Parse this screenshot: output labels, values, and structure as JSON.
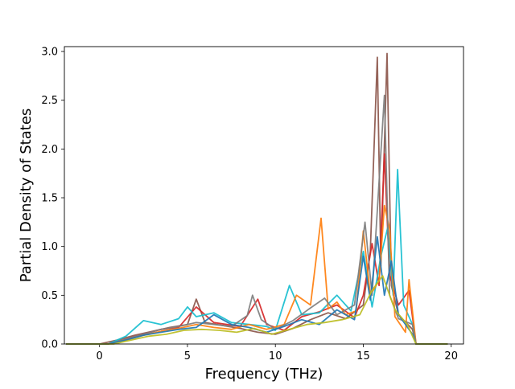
{
  "chart_data": {
    "type": "line",
    "title": "",
    "xlabel": "Frequency (THz)",
    "ylabel": "Partial Density of States",
    "xlim": [
      -2.0,
      20.7
    ],
    "ylim": [
      0.0,
      3.05
    ],
    "xticks": [
      0,
      5,
      10,
      15,
      20
    ],
    "yticks": [
      0.0,
      0.5,
      1.0,
      1.5,
      2.0,
      2.5,
      3.0
    ],
    "xtick_labels": [
      "0",
      "5",
      "10",
      "15",
      "20"
    ],
    "ytick_labels": [
      "0.0",
      "0.5",
      "1.0",
      "1.5",
      "2.0",
      "2.5",
      "3.0"
    ],
    "grid": false,
    "legend": "none",
    "series": [
      {
        "color": "#8c564b",
        "points": [
          [
            -1.9,
            0
          ],
          [
            0,
            0
          ],
          [
            1,
            0.04
          ],
          [
            2,
            0.09
          ],
          [
            3,
            0.13
          ],
          [
            4,
            0.17
          ],
          [
            5,
            0.2
          ],
          [
            5.5,
            0.46
          ],
          [
            6,
            0.22
          ],
          [
            7,
            0.19
          ],
          [
            8,
            0.16
          ],
          [
            9,
            0.12
          ],
          [
            10,
            0.1
          ],
          [
            11,
            0.16
          ],
          [
            12,
            0.25
          ],
          [
            13,
            0.32
          ],
          [
            14,
            0.26
          ],
          [
            15,
            0.4
          ],
          [
            15.4,
            0.95
          ],
          [
            15.8,
            2.94
          ],
          [
            16.0,
            0.8
          ],
          [
            16.35,
            2.98
          ],
          [
            16.6,
            0.6
          ],
          [
            17,
            0.3
          ],
          [
            17.8,
            0.15
          ],
          [
            18,
            0
          ],
          [
            19.8,
            0
          ]
        ]
      },
      {
        "color": "#d62728",
        "points": [
          [
            -1.9,
            0
          ],
          [
            0.5,
            0
          ],
          [
            1.5,
            0.05
          ],
          [
            2.5,
            0.1
          ],
          [
            3.5,
            0.15
          ],
          [
            4.5,
            0.17
          ],
          [
            5.5,
            0.38
          ],
          [
            6.5,
            0.22
          ],
          [
            8,
            0.18
          ],
          [
            9,
            0.46
          ],
          [
            9.5,
            0.2
          ],
          [
            10.5,
            0.14
          ],
          [
            11.5,
            0.28
          ],
          [
            12.5,
            0.33
          ],
          [
            13.5,
            0.4
          ],
          [
            14.5,
            0.27
          ],
          [
            15,
            0.5
          ],
          [
            15.5,
            1.03
          ],
          [
            15.9,
            0.6
          ],
          [
            16.2,
            1.95
          ],
          [
            16.5,
            0.7
          ],
          [
            17,
            0.4
          ],
          [
            17.6,
            0.55
          ],
          [
            18,
            0
          ],
          [
            19.8,
            0
          ]
        ]
      },
      {
        "color": "#17becf",
        "points": [
          [
            -1.9,
            0
          ],
          [
            0.5,
            0
          ],
          [
            1.5,
            0.08
          ],
          [
            2.5,
            0.24
          ],
          [
            3.5,
            0.2
          ],
          [
            4.5,
            0.26
          ],
          [
            5,
            0.38
          ],
          [
            5.5,
            0.28
          ],
          [
            6.5,
            0.32
          ],
          [
            7.5,
            0.22
          ],
          [
            8.5,
            0.2
          ],
          [
            9.5,
            0.18
          ],
          [
            10,
            0.14
          ],
          [
            10.8,
            0.6
          ],
          [
            11.5,
            0.3
          ],
          [
            12.5,
            0.32
          ],
          [
            13.5,
            0.5
          ],
          [
            14.3,
            0.34
          ],
          [
            15,
            0.95
          ],
          [
            15.5,
            0.38
          ],
          [
            16,
            0.9
          ],
          [
            16.4,
            1.2
          ],
          [
            16.7,
            0.5
          ],
          [
            16.95,
            1.79
          ],
          [
            17.3,
            0.4
          ],
          [
            17.8,
            0.2
          ],
          [
            18,
            0
          ],
          [
            19.8,
            0
          ]
        ]
      },
      {
        "color": "#ff7f0e",
        "points": [
          [
            -1.9,
            0
          ],
          [
            0.5,
            0
          ],
          [
            1.5,
            0.04
          ],
          [
            2.5,
            0.09
          ],
          [
            3.5,
            0.13
          ],
          [
            4.5,
            0.16
          ],
          [
            5.5,
            0.2
          ],
          [
            6.5,
            0.17
          ],
          [
            7.5,
            0.15
          ],
          [
            8.5,
            0.2
          ],
          [
            9.5,
            0.15
          ],
          [
            10.5,
            0.2
          ],
          [
            11.2,
            0.5
          ],
          [
            12,
            0.4
          ],
          [
            12.6,
            1.29
          ],
          [
            13,
            0.36
          ],
          [
            13.5,
            0.43
          ],
          [
            14,
            0.3
          ],
          [
            14.6,
            0.34
          ],
          [
            15,
            1.16
          ],
          [
            15.4,
            0.5
          ],
          [
            15.9,
            0.65
          ],
          [
            16.2,
            1.42
          ],
          [
            16.5,
            1.18
          ],
          [
            16.8,
            0.28
          ],
          [
            17.4,
            0.12
          ],
          [
            17.6,
            0.66
          ],
          [
            18,
            0
          ],
          [
            19.8,
            0
          ]
        ]
      },
      {
        "color": "#7f7f7f",
        "points": [
          [
            -1.9,
            0
          ],
          [
            0.5,
            0
          ],
          [
            1.5,
            0.05
          ],
          [
            2.5,
            0.1
          ],
          [
            3.5,
            0.15
          ],
          [
            4.5,
            0.18
          ],
          [
            5.5,
            0.22
          ],
          [
            6.5,
            0.2
          ],
          [
            7.5,
            0.18
          ],
          [
            8.4,
            0.29
          ],
          [
            8.7,
            0.5
          ],
          [
            9.2,
            0.25
          ],
          [
            10,
            0.15
          ],
          [
            11,
            0.24
          ],
          [
            12,
            0.37
          ],
          [
            12.8,
            0.47
          ],
          [
            13.5,
            0.3
          ],
          [
            14.5,
            0.4
          ],
          [
            15.1,
            1.25
          ],
          [
            15.5,
            0.5
          ],
          [
            16.2,
            2.55
          ],
          [
            16.5,
            0.5
          ],
          [
            17,
            0.26
          ],
          [
            17.8,
            0.2
          ],
          [
            18,
            0
          ],
          [
            19.8,
            0
          ]
        ]
      },
      {
        "color": "#1f77b4",
        "points": [
          [
            -1.9,
            0
          ],
          [
            0.5,
            0
          ],
          [
            1.5,
            0.04
          ],
          [
            2.5,
            0.09
          ],
          [
            3.5,
            0.12
          ],
          [
            4.5,
            0.15
          ],
          [
            5.5,
            0.17
          ],
          [
            6.5,
            0.3
          ],
          [
            7.5,
            0.2
          ],
          [
            8.5,
            0.17
          ],
          [
            9.5,
            0.12
          ],
          [
            10.5,
            0.18
          ],
          [
            11.5,
            0.25
          ],
          [
            12.5,
            0.2
          ],
          [
            13.5,
            0.35
          ],
          [
            14.5,
            0.25
          ],
          [
            15,
            0.9
          ],
          [
            15.4,
            0.45
          ],
          [
            15.8,
            1.1
          ],
          [
            16.2,
            0.5
          ],
          [
            16.6,
            0.85
          ],
          [
            17,
            0.3
          ],
          [
            17.8,
            0.1
          ],
          [
            18,
            0
          ],
          [
            19.8,
            0
          ]
        ]
      },
      {
        "color": "#bcbd22",
        "points": [
          [
            -1.9,
            0
          ],
          [
            0.8,
            0
          ],
          [
            1.8,
            0.04
          ],
          [
            2.8,
            0.08
          ],
          [
            3.8,
            0.1
          ],
          [
            4.8,
            0.14
          ],
          [
            5.8,
            0.15
          ],
          [
            6.8,
            0.14
          ],
          [
            7.8,
            0.12
          ],
          [
            8.8,
            0.16
          ],
          [
            9.8,
            0.1
          ],
          [
            10.8,
            0.15
          ],
          [
            11.8,
            0.2
          ],
          [
            12.8,
            0.22
          ],
          [
            13.8,
            0.25
          ],
          [
            14.8,
            0.3
          ],
          [
            15.5,
            0.55
          ],
          [
            16.1,
            0.7
          ],
          [
            16.8,
            0.35
          ],
          [
            17.5,
            0.2
          ],
          [
            18,
            0
          ],
          [
            19.8,
            0
          ]
        ]
      }
    ]
  }
}
